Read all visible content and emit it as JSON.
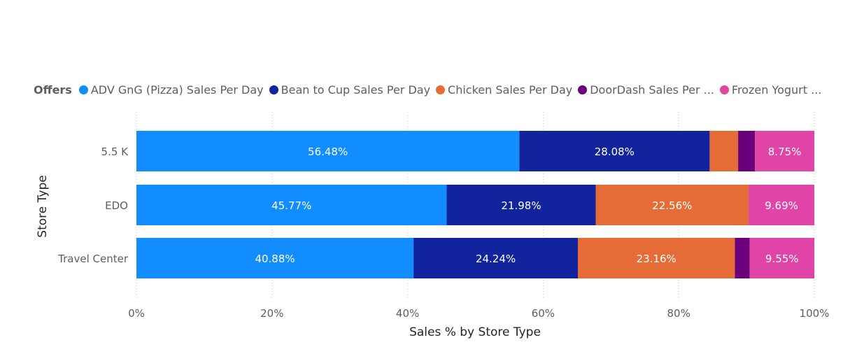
{
  "chart_data": {
    "type": "bar",
    "orientation": "horizontal",
    "stacked": "100%",
    "title": "",
    "xlabel": "Sales % by Store Type",
    "ylabel": "Store Type",
    "xlim": [
      0,
      100
    ],
    "xticks": [
      "0%",
      "20%",
      "40%",
      "60%",
      "80%",
      "100%"
    ],
    "grid": true,
    "legend": {
      "title": "Offers",
      "placement": "top-left",
      "entries": [
        {
          "label": "ADV GnG (Pizza) Sales Per Day",
          "color": "#118dff"
        },
        {
          "label": "Bean to Cup Sales Per Day",
          "color": "#12239e"
        },
        {
          "label": "Chicken Sales Per Day",
          "color": "#e66c37"
        },
        {
          "label": "DoorDash Sales Per ...",
          "color": "#6b007b"
        },
        {
          "label": "Frozen Yogurt ...",
          "color": "#e044a7"
        }
      ]
    },
    "categories": [
      "5.5 K",
      "EDO",
      "Travel Center"
    ],
    "series": [
      {
        "name": "ADV GnG (Pizza) Sales Per Day",
        "color": "#118dff",
        "values": [
          56.48,
          45.77,
          40.88
        ],
        "labels": [
          "56.48%",
          "45.77%",
          "40.88%"
        ]
      },
      {
        "name": "Bean to Cup Sales Per Day",
        "color": "#12239e",
        "values": [
          28.08,
          21.98,
          24.24
        ],
        "labels": [
          "28.08%",
          "21.98%",
          "24.24%"
        ]
      },
      {
        "name": "Chicken Sales Per Day",
        "color": "#e66c37",
        "values": [
          4.2,
          22.56,
          23.16
        ],
        "labels": [
          "",
          "22.56%",
          "23.16%"
        ]
      },
      {
        "name": "DoorDash Sales Per Day",
        "color": "#6b007b",
        "values": [
          2.49,
          0,
          2.17
        ],
        "labels": [
          "",
          "",
          ""
        ]
      },
      {
        "name": "Frozen Yogurt Sales Per Day",
        "color": "#e044a7",
        "values": [
          8.75,
          9.69,
          9.55
        ],
        "labels": [
          "8.75%",
          "9.69%",
          "9.55%"
        ]
      }
    ]
  }
}
